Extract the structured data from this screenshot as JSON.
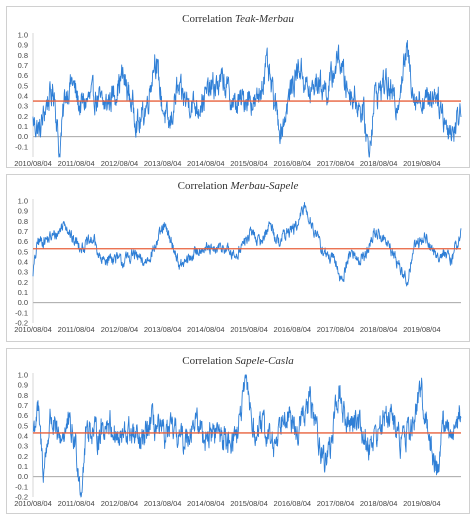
{
  "chart_data": [
    {
      "type": "line",
      "title_prefix": "Correlation",
      "title_pair": "Teak-Merbau",
      "ylim": [
        -0.2,
        1.0
      ],
      "yticks": [
        "1.0",
        "0.9",
        "0.8",
        "0.7",
        "0.6",
        "0.5",
        "0.4",
        "0.3",
        "0.2",
        "0.1",
        "0.0",
        "-0.1"
      ],
      "xlim": [
        "2010-08-04",
        "2020-06-30"
      ],
      "xticks": [
        "2010/08/04",
        "2011/08/04",
        "2012/08/04",
        "2013/08/04",
        "2014/08/04",
        "2015/08/04",
        "2016/08/04",
        "2017/08/04",
        "2018/08/04",
        "2019/08/04"
      ],
      "mean": 0.35,
      "line_color": "#2f7fd6",
      "mean_color": "#e8603c",
      "series_knots": [
        [
          "2010-08-04",
          0.15
        ],
        [
          "2010-10-01",
          0.05
        ],
        [
          "2010-12-01",
          0.35
        ],
        [
          "2011-02-01",
          0.45
        ],
        [
          "2011-03-15",
          -0.18
        ],
        [
          "2011-05-01",
          0.4
        ],
        [
          "2011-07-01",
          0.55
        ],
        [
          "2011-09-01",
          0.3
        ],
        [
          "2011-11-01",
          0.35
        ],
        [
          "2012-01-01",
          0.4
        ],
        [
          "2012-04-01",
          0.3
        ],
        [
          "2012-07-01",
          0.45
        ],
        [
          "2012-09-01",
          0.6
        ],
        [
          "2012-11-01",
          0.38
        ],
        [
          "2013-01-15",
          0.1
        ],
        [
          "2013-04-01",
          0.35
        ],
        [
          "2013-06-01",
          0.8
        ],
        [
          "2013-08-01",
          0.3
        ],
        [
          "2013-10-01",
          0.08
        ],
        [
          "2013-12-01",
          0.45
        ],
        [
          "2014-03-01",
          0.35
        ],
        [
          "2014-06-01",
          0.3
        ],
        [
          "2014-09-01",
          0.45
        ],
        [
          "2015-01-01",
          0.55
        ],
        [
          "2015-04-01",
          0.3
        ],
        [
          "2015-08-01",
          0.4
        ],
        [
          "2015-10-01",
          0.3
        ],
        [
          "2016-01-01",
          0.7
        ],
        [
          "2016-03-01",
          0.35
        ],
        [
          "2016-05-01",
          0.05
        ],
        [
          "2016-08-01",
          0.5
        ],
        [
          "2016-10-01",
          0.7
        ],
        [
          "2017-01-01",
          0.4
        ],
        [
          "2017-03-01",
          0.55
        ],
        [
          "2017-06-01",
          0.45
        ],
        [
          "2017-09-01",
          0.8
        ],
        [
          "2017-11-01",
          0.5
        ],
        [
          "2018-02-01",
          0.35
        ],
        [
          "2018-04-01",
          0.2
        ],
        [
          "2018-05-15",
          -0.15
        ],
        [
          "2018-07-01",
          0.4
        ],
        [
          "2018-10-01",
          0.55
        ],
        [
          "2019-01-01",
          0.3
        ],
        [
          "2019-04-01",
          0.85
        ],
        [
          "2019-06-01",
          0.4
        ],
        [
          "2019-09-01",
          0.35
        ],
        [
          "2019-12-01",
          0.45
        ],
        [
          "2020-03-01",
          0.1
        ],
        [
          "2020-05-01",
          0.05
        ],
        [
          "2020-06-30",
          0.3
        ]
      ]
    },
    {
      "type": "line",
      "title_prefix": "Correlation",
      "title_pair": "Merbau-Sapele",
      "ylim": [
        -0.2,
        1.0
      ],
      "yticks": [
        "1.0",
        "0.9",
        "0.8",
        "0.7",
        "0.6",
        "0.5",
        "0.4",
        "0.3",
        "0.2",
        "0.1",
        "0.0",
        "-0.1",
        "-0.2"
      ],
      "xlim": [
        "2010-08-04",
        "2020-06-30"
      ],
      "xticks": [
        "2010/08/04",
        "2011/08/04",
        "2012/08/04",
        "2013/08/04",
        "2014/08/04",
        "2015/08/04",
        "2016/08/04",
        "2017/08/04",
        "2018/08/04",
        "2019/08/04"
      ],
      "mean": 0.53,
      "line_color": "#2f7fd6",
      "mean_color": "#e8603c",
      "series_knots": [
        [
          "2010-08-04",
          0.3
        ],
        [
          "2010-09-15",
          0.6
        ],
        [
          "2010-12-01",
          0.62
        ],
        [
          "2011-03-01",
          0.68
        ],
        [
          "2011-05-01",
          0.8
        ],
        [
          "2011-07-01",
          0.62
        ],
        [
          "2011-10-01",
          0.55
        ],
        [
          "2012-01-01",
          0.62
        ],
        [
          "2012-03-01",
          0.4
        ],
        [
          "2012-06-01",
          0.45
        ],
        [
          "2012-09-01",
          0.4
        ],
        [
          "2012-12-01",
          0.48
        ],
        [
          "2013-03-01",
          0.38
        ],
        [
          "2013-06-01",
          0.55
        ],
        [
          "2013-08-15",
          0.75
        ],
        [
          "2013-10-15",
          0.6
        ],
        [
          "2014-01-01",
          0.35
        ],
        [
          "2014-04-01",
          0.45
        ],
        [
          "2014-07-01",
          0.55
        ],
        [
          "2014-10-01",
          0.5
        ],
        [
          "2015-01-01",
          0.55
        ],
        [
          "2015-04-01",
          0.45
        ],
        [
          "2015-07-01",
          0.6
        ],
        [
          "2015-09-01",
          0.7
        ],
        [
          "2015-11-01",
          0.58
        ],
        [
          "2016-02-01",
          0.78
        ],
        [
          "2016-04-01",
          0.6
        ],
        [
          "2016-07-01",
          0.7
        ],
        [
          "2016-09-15",
          0.75
        ],
        [
          "2016-11-15",
          0.95
        ],
        [
          "2017-01-15",
          0.78
        ],
        [
          "2017-04-01",
          0.55
        ],
        [
          "2017-06-01",
          0.45
        ],
        [
          "2017-08-01",
          0.4
        ],
        [
          "2017-10-01",
          0.2
        ],
        [
          "2017-12-01",
          0.5
        ],
        [
          "2018-03-01",
          0.42
        ],
        [
          "2018-05-01",
          0.5
        ],
        [
          "2018-07-01",
          0.7
        ],
        [
          "2018-09-01",
          0.65
        ],
        [
          "2018-11-01",
          0.55
        ],
        [
          "2019-02-01",
          0.35
        ],
        [
          "2019-04-01",
          0.2
        ],
        [
          "2019-06-01",
          0.55
        ],
        [
          "2019-09-01",
          0.65
        ],
        [
          "2019-12-01",
          0.45
        ],
        [
          "2020-02-01",
          0.5
        ],
        [
          "2020-04-01",
          0.4
        ],
        [
          "2020-06-30",
          0.7
        ]
      ]
    },
    {
      "type": "line",
      "title_prefix": "Correlation",
      "title_pair": "Sapele-Casla",
      "ylim": [
        -0.2,
        1.0
      ],
      "yticks": [
        "1.0",
        "0.9",
        "0.8",
        "0.7",
        "0.6",
        "0.5",
        "0.4",
        "0.3",
        "0.2",
        "0.1",
        "0.0",
        "-0.1",
        "-0.2"
      ],
      "xlim": [
        "2010-08-04",
        "2020-06-30"
      ],
      "xticks": [
        "2010/08/04",
        "2011/08/04",
        "2012/08/04",
        "2013/08/04",
        "2014/08/04",
        "2015/08/04",
        "2016/08/04",
        "2017/08/04",
        "2018/08/04",
        "2019/08/04"
      ],
      "mean": 0.43,
      "line_color": "#2f7fd6",
      "mean_color": "#e8603c",
      "series_knots": [
        [
          "2010-08-04",
          0.45
        ],
        [
          "2010-09-15",
          0.65
        ],
        [
          "2010-11-01",
          0.05
        ],
        [
          "2011-01-01",
          0.6
        ],
        [
          "2011-03-01",
          0.35
        ],
        [
          "2011-06-01",
          0.5
        ],
        [
          "2011-08-01",
          0.3
        ],
        [
          "2011-09-15",
          -0.15
        ],
        [
          "2011-11-01",
          0.5
        ],
        [
          "2012-02-01",
          0.4
        ],
        [
          "2012-05-01",
          0.55
        ],
        [
          "2012-08-01",
          0.35
        ],
        [
          "2012-11-01",
          0.45
        ],
        [
          "2013-02-01",
          0.3
        ],
        [
          "2013-05-01",
          0.55
        ],
        [
          "2013-08-01",
          0.4
        ],
        [
          "2013-11-01",
          0.45
        ],
        [
          "2014-02-01",
          0.35
        ],
        [
          "2014-05-01",
          0.55
        ],
        [
          "2014-08-01",
          0.4
        ],
        [
          "2014-11-01",
          0.45
        ],
        [
          "2015-02-01",
          0.35
        ],
        [
          "2015-05-01",
          0.45
        ],
        [
          "2015-07-15",
          0.95
        ],
        [
          "2015-09-15",
          0.4
        ],
        [
          "2015-12-01",
          0.5
        ],
        [
          "2016-03-01",
          0.3
        ],
        [
          "2016-06-01",
          0.7
        ],
        [
          "2016-09-01",
          0.4
        ],
        [
          "2017-01-01",
          0.75
        ],
        [
          "2017-03-01",
          0.45
        ],
        [
          "2017-05-01",
          0.15
        ],
        [
          "2017-07-01",
          0.35
        ],
        [
          "2017-09-01",
          0.85
        ],
        [
          "2017-11-01",
          0.5
        ],
        [
          "2018-02-01",
          0.6
        ],
        [
          "2018-05-01",
          0.3
        ],
        [
          "2018-08-01",
          0.45
        ],
        [
          "2018-11-01",
          0.65
        ],
        [
          "2019-02-01",
          0.35
        ],
        [
          "2019-05-01",
          0.45
        ],
        [
          "2019-08-01",
          0.85
        ],
        [
          "2019-10-01",
          0.4
        ],
        [
          "2019-12-15",
          0.05
        ],
        [
          "2020-02-01",
          0.55
        ],
        [
          "2020-04-01",
          0.4
        ],
        [
          "2020-06-30",
          0.65
        ]
      ]
    }
  ]
}
